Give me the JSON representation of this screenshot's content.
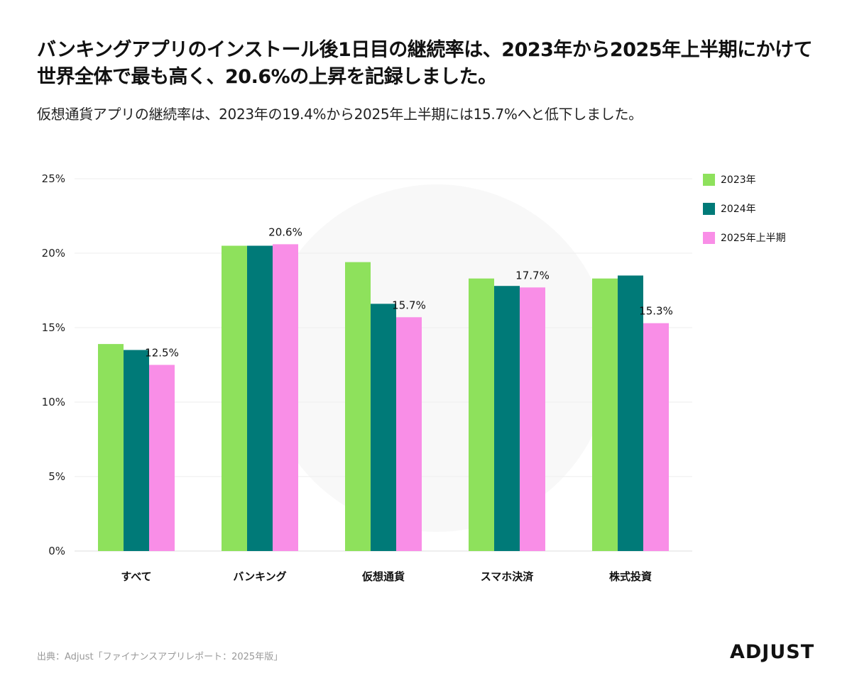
{
  "header": {
    "title_line1": "バンキングアプリのインストール後1日目の継続率は、2023年から2025年上半期にかけて",
    "title_line2": "世界全体で最も高く、20.6%の上昇を記録しました。",
    "subtitle": "仮想通貨アプリの継続率は、2023年の19.4%から2025年上半期には15.7%へと低下しました。"
  },
  "chart_data": {
    "type": "bar",
    "categories": [
      "すべて",
      "バンキング",
      "仮想通貨",
      "スマホ決済",
      "株式投資"
    ],
    "series": [
      {
        "name": "2023年",
        "color": "#8ee15c",
        "values": [
          13.9,
          20.5,
          19.4,
          18.3,
          18.3
        ]
      },
      {
        "name": "2024年",
        "color": "#007a78",
        "values": [
          13.5,
          20.5,
          16.6,
          17.8,
          18.5
        ]
      },
      {
        "name": "2025年上半期",
        "color": "#f98ee7",
        "values": [
          12.5,
          20.6,
          15.7,
          17.7,
          15.3
        ]
      }
    ],
    "data_labels": [
      "12.5%",
      "20.6%",
      "15.7%",
      "17.7%",
      "15.3%"
    ],
    "ylim": [
      0,
      25
    ],
    "yticks": [
      0,
      5,
      10,
      15,
      20,
      25
    ],
    "ytick_labels": [
      "0%",
      "5%",
      "10%",
      "15%",
      "20%",
      "25%"
    ],
    "legend_position": "top-right",
    "grid": true
  },
  "footer": {
    "source": "出典：Adjust「ファイナンスアプリレポート：2025年版」",
    "logo_text": "ADJUST"
  }
}
